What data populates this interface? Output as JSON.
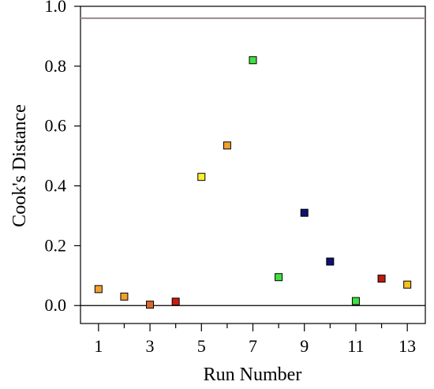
{
  "chart_data": {
    "type": "scatter",
    "xlabel": "Run Number",
    "ylabel": "Cook's Distance",
    "xlim": [
      0.3,
      13.7
    ],
    "ylim": [
      -0.06,
      1.0
    ],
    "x_ticks": [
      1,
      3,
      5,
      7,
      9,
      11,
      13
    ],
    "x_minor_ticks": [
      2,
      4,
      6,
      8,
      10,
      12
    ],
    "y_ticks": [
      0.0,
      0.2,
      0.4,
      0.6,
      0.8,
      1.0
    ],
    "y_tick_labels": [
      "0.0",
      "0.2",
      "0.4",
      "0.6",
      "0.8",
      "1.0"
    ],
    "x_tick_labels": [
      "1",
      "3",
      "5",
      "7",
      "9",
      "11",
      "13"
    ],
    "reference_lines": [
      {
        "y": 0.96,
        "color": "#9c8a8a"
      },
      {
        "y": 0.0,
        "color": "#000000"
      }
    ],
    "points": [
      {
        "x": 1,
        "y": 0.055,
        "color": "#f0a030"
      },
      {
        "x": 2,
        "y": 0.03,
        "color": "#f0a030"
      },
      {
        "x": 3,
        "y": 0.003,
        "color": "#d86a2a"
      },
      {
        "x": 4,
        "y": 0.013,
        "color": "#cc1a10"
      },
      {
        "x": 5,
        "y": 0.43,
        "color": "#f8f030"
      },
      {
        "x": 6,
        "y": 0.535,
        "color": "#f0a030"
      },
      {
        "x": 7,
        "y": 0.82,
        "color": "#40e040"
      },
      {
        "x": 8,
        "y": 0.095,
        "color": "#40e040"
      },
      {
        "x": 9,
        "y": 0.31,
        "color": "#101070"
      },
      {
        "x": 10,
        "y": 0.147,
        "color": "#101070"
      },
      {
        "x": 11,
        "y": 0.015,
        "color": "#40e040"
      },
      {
        "x": 12,
        "y": 0.09,
        "color": "#bb1a10"
      },
      {
        "x": 13,
        "y": 0.07,
        "color": "#f8c020"
      }
    ],
    "grid": false,
    "legend": "none"
  }
}
